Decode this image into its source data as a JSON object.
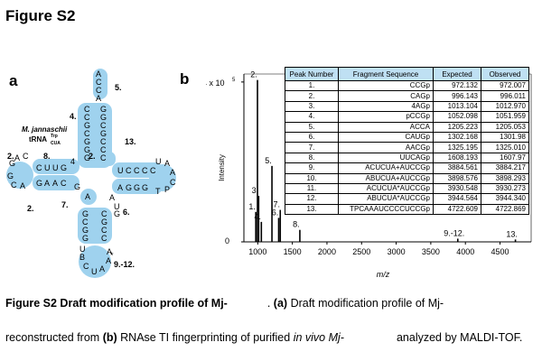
{
  "figure_title": "Figure S2",
  "panel_a_label": "a",
  "panel_b_label": "b",
  "trna": {
    "organism": "M. jannaschii",
    "trna_name": "tRNA",
    "trna_sup": "Trp",
    "trna_sub": "CUA",
    "peak_labels": {
      "p2a": "2.",
      "p2b": "2.",
      "p2c": "2.",
      "p4": "4.",
      "p5": "5.",
      "p6": "6.",
      "p7": "7.",
      "p8": "8.",
      "p13": "13.",
      "p9_12": "9.-12."
    }
  },
  "ms": {
    "y_exponent_label": "4 x 10",
    "y_exponent_sup": "5",
    "y_zero_label": "0",
    "ylabel": "Intensity",
    "xlabel": "m/z",
    "peak_annotations": [
      "1.",
      "2.",
      "3.",
      "4.",
      "5.",
      "6.",
      "7.",
      "8.",
      "9.-12.",
      "13."
    ]
  },
  "chart_data": {
    "type": "bar",
    "xlabel": "m/z",
    "ylabel": "Intensity",
    "xlim": [
      800,
      4950
    ],
    "ylim": [
      0,
      420000
    ],
    "x_ticks": [
      1000,
      1500,
      2000,
      2500,
      3000,
      3500,
      4000,
      4500
    ],
    "y_ticks": [
      0,
      400000
    ],
    "peaks": [
      {
        "label": "1.",
        "mz": 972.1,
        "intensity": 75000
      },
      {
        "label": "2.",
        "mz": 996.1,
        "intensity": 405000
      },
      {
        "label": "3.",
        "mz": 1013.1,
        "intensity": 115000
      },
      {
        "label": "4.",
        "mz": 1052.1,
        "intensity": 50000
      },
      {
        "label": "5.",
        "mz": 1205.2,
        "intensity": 190000
      },
      {
        "label": "6.",
        "mz": 1302.2,
        "intensity": 60000
      },
      {
        "label": "7.",
        "mz": 1325.2,
        "intensity": 80000
      },
      {
        "label": "8.",
        "mz": 1608.2,
        "intensity": 30000
      },
      {
        "label": "9.-12.",
        "mz": 3890.0,
        "intensity": 8000
      },
      {
        "label": "13.",
        "mz": 4722.6,
        "intensity": 6000
      }
    ]
  },
  "table": {
    "headers": [
      "Peak Number",
      "Fragment Sequence",
      "Expected",
      "Observed"
    ],
    "rows": [
      [
        "1.",
        "CCGp",
        "972.132",
        "972.007"
      ],
      [
        "2.",
        "CAGp",
        "996.143",
        "996.011"
      ],
      [
        "3.",
        "4AGp",
        "1013.104",
        "1012.970"
      ],
      [
        "4.",
        "pCCGp",
        "1052.098",
        "1051.959"
      ],
      [
        "5.",
        "ACCA",
        "1205.223",
        "1205.053"
      ],
      [
        "6.",
        "CAUGp",
        "1302.168",
        "1301.98"
      ],
      [
        "7.",
        "AACGp",
        "1325.195",
        "1325.010"
      ],
      [
        "8.",
        "UUCAGp",
        "1608.193",
        "1607.97"
      ],
      [
        "9.",
        "ACUCUA+AUCCGp",
        "3884.561",
        "3884.217"
      ],
      [
        "10.",
        "ABUCUA+AUCCGp",
        "3898.576",
        "3898.293"
      ],
      [
        "11.",
        "ACUCUA*AUCCGp",
        "3930.548",
        "3930.273"
      ],
      [
        "12.",
        "ABUCUA*AUCCGp",
        "3944.564",
        "3944.340"
      ],
      [
        "13.",
        "TPCAAAUCCCCUCCGp",
        "4722.609",
        "4722.869"
      ]
    ]
  },
  "caption": {
    "line1_bold": "Figure S2 Draft modification profile of Mj-",
    "line1_a": "(a)",
    "line1_rest": "Draft modification profile of Mj-",
    "line2_start": "reconstructed from",
    "line2_b": "(b)",
    "line2_mid": "RNAse TI fingerprinting of purified",
    "line2_invivo": "in vivo Mj-",
    "line2_end": "analyzed by MALDI-TOF."
  }
}
